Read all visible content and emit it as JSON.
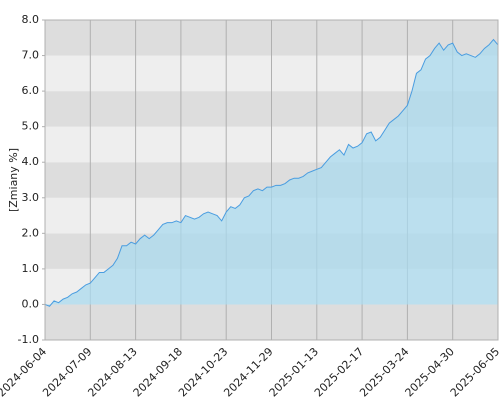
{
  "chart_data": {
    "type": "area",
    "y_label": "[Zmiany %]",
    "xticks": [
      "2024-06-04",
      "2024-07-09",
      "2024-08-13",
      "2024-09-18",
      "2024-10-23",
      "2024-11-29",
      "2025-01-13",
      "2025-02-17",
      "2025-03-24",
      "2025-04-30",
      "2025-06-05"
    ],
    "series": [
      {
        "color": "#4a9de0",
        "fill": "#a9d9ee",
        "values": [
          0,
          -0.05,
          0.1,
          0.05,
          0.15,
          0.2,
          0.3,
          0.35,
          0.45,
          0.55,
          0.6,
          0.75,
          0.9,
          0.9,
          1.0,
          1.1,
          1.3,
          1.65,
          1.65,
          1.75,
          1.7,
          1.85,
          1.95,
          1.85,
          1.95,
          2.1,
          2.25,
          2.3,
          2.3,
          2.35,
          2.3,
          2.5,
          2.45,
          2.4,
          2.45,
          2.55,
          2.6,
          2.55,
          2.5,
          2.35,
          2.6,
          2.75,
          2.7,
          2.8,
          3.0,
          3.05,
          3.2,
          3.25,
          3.2,
          3.3,
          3.3,
          3.35,
          3.35,
          3.4,
          3.5,
          3.55,
          3.55,
          3.6,
          3.7,
          3.75,
          3.8,
          3.85,
          4.0,
          4.15,
          4.25,
          4.35,
          4.2,
          4.5,
          4.4,
          4.45,
          4.55,
          4.8,
          4.85,
          4.6,
          4.7,
          4.9,
          5.1,
          5.2,
          5.3,
          5.45,
          5.6,
          6.0,
          6.5,
          6.6,
          6.9,
          7.0,
          7.2,
          7.35,
          7.15,
          7.3,
          7.35,
          7.1,
          7.0,
          7.05,
          7.0,
          6.95,
          7.05,
          7.2,
          7.3,
          7.45,
          7.3
        ]
      }
    ],
    "ylim": [
      -1,
      8
    ],
    "yticks": [
      {
        "value": -1,
        "label": "-1.0"
      },
      {
        "value": 0,
        "label": "0.0"
      },
      {
        "value": 1,
        "label": "1.0"
      },
      {
        "value": 2,
        "label": "2.0"
      },
      {
        "value": 3,
        "label": "3.0"
      },
      {
        "value": 4,
        "label": "4.0"
      },
      {
        "value": 5,
        "label": "5.0"
      },
      {
        "value": 6,
        "label": "6.0"
      },
      {
        "value": 7,
        "label": "7.0"
      },
      {
        "value": 8,
        "label": "8.0"
      }
    ],
    "bands": [
      "#dddddd",
      "#eeeeee"
    ],
    "grid_color": "#b0b0b0"
  }
}
